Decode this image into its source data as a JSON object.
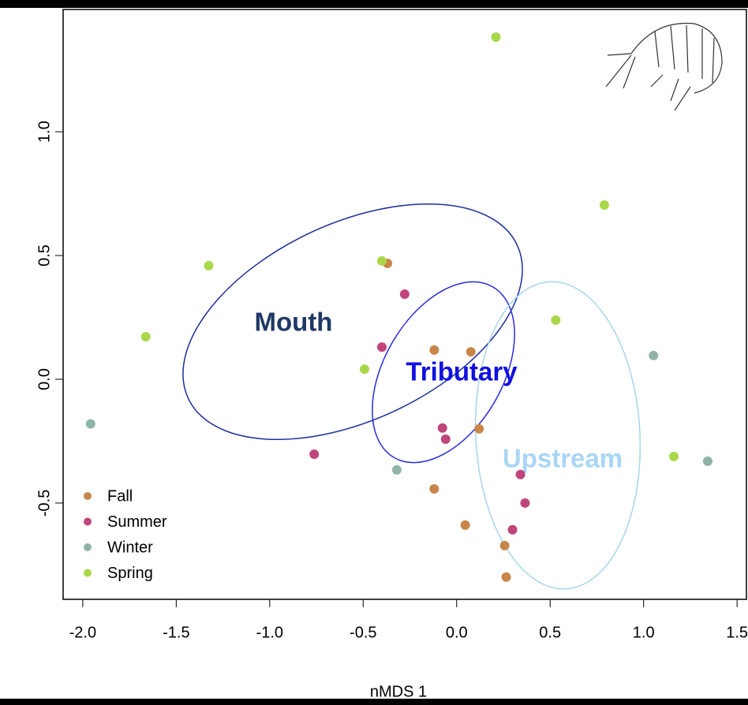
{
  "chart_data": {
    "type": "scatter",
    "x_label": "nMDS 1",
    "xlim": [
      -2.105,
      1.55
    ],
    "ylim": [
      -0.889,
      1.494
    ],
    "xticks": [
      {
        "value": -2,
        "label": "-2.0"
      },
      -1.5,
      {
        "value": -1,
        "label": "-1.0"
      },
      -0.5,
      {
        "value": 0,
        "label": "0.0"
      },
      0.5,
      {
        "value": 1,
        "label": "1.0"
      },
      1.5
    ],
    "yticks": [
      -0.5,
      {
        "value": 0,
        "label": "0.0"
      },
      0.5,
      {
        "value": 1,
        "label": "1.0"
      }
    ],
    "legend": "bottom-left",
    "annotations": [
      "Mouth",
      "Tributary",
      "Upstream"
    ],
    "series": [
      {
        "name": "Fall",
        "color": "#c8864a",
        "x": [
          -0.37,
          -0.12,
          0.076,
          0.12,
          -0.12,
          0.046,
          0.257,
          0.265
        ],
        "values": [
          0.468,
          0.118,
          0.111,
          -0.2,
          -0.443,
          -0.589,
          -0.672,
          -0.799
        ]
      },
      {
        "name": "Summer",
        "color": "#c0457a",
        "x": [
          -0.278,
          -0.4,
          -0.762,
          -0.076,
          -0.059,
          0.341,
          0.366,
          0.299
        ],
        "values": [
          0.344,
          0.13,
          -0.303,
          -0.197,
          -0.242,
          -0.385,
          -0.5,
          -0.608
        ]
      },
      {
        "name": "Winter",
        "color": "#8fb3a8",
        "x": [
          -1.958,
          -0.32,
          1.053,
          1.343
        ],
        "values": [
          -0.18,
          -0.366,
          0.096,
          -0.331
        ]
      },
      {
        "name": "Spring",
        "color": "#a8d84a",
        "x": [
          0.21,
          0.79,
          -1.326,
          -0.4,
          -1.663,
          -0.493,
          0.53,
          1.162
        ],
        "values": [
          1.382,
          0.704,
          0.459,
          0.478,
          0.172,
          0.041,
          0.239,
          -0.312
        ]
      }
    ]
  }
}
